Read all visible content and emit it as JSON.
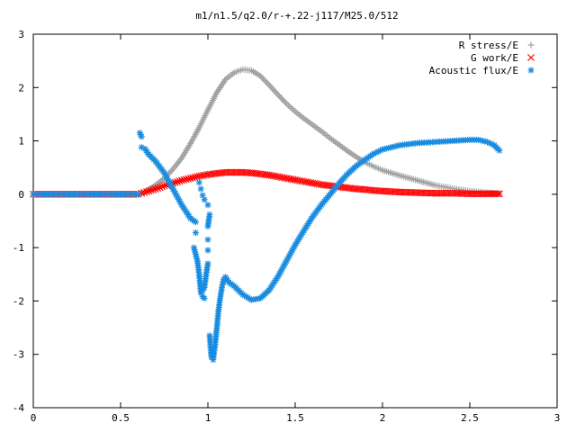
{
  "chart_data": {
    "type": "scatter",
    "title": "m1/n1.5/q2.0/r-+.22-j117/M25.0/512",
    "xlabel": "",
    "ylabel": "",
    "xlim": [
      0,
      3
    ],
    "ylim": [
      -4,
      3
    ],
    "xticks": [
      0,
      0.5,
      1,
      1.5,
      2,
      2.5,
      3
    ],
    "yticks": [
      -4,
      -3,
      -2,
      -1,
      0,
      1,
      2,
      3
    ],
    "xtick_labels": [
      "0",
      "0.5",
      "1",
      "1.5",
      "2",
      "2.5",
      "3"
    ],
    "ytick_labels": [
      "-4",
      "-3",
      "-2",
      "-1",
      "0",
      "1",
      "2",
      "3"
    ],
    "grid": false,
    "legend_position": "top-right",
    "series": [
      {
        "name": "R stress/E",
        "marker": "+",
        "color": "#a0a0a0",
        "points": [
          [
            0.0,
            0
          ],
          [
            0.1,
            0
          ],
          [
            0.2,
            0
          ],
          [
            0.3,
            0
          ],
          [
            0.4,
            0
          ],
          [
            0.5,
            0
          ],
          [
            0.6,
            0
          ],
          [
            0.62,
            0.02
          ],
          [
            0.65,
            0.07
          ],
          [
            0.7,
            0.17
          ],
          [
            0.75,
            0.3
          ],
          [
            0.8,
            0.47
          ],
          [
            0.85,
            0.68
          ],
          [
            0.9,
            0.95
          ],
          [
            0.95,
            1.25
          ],
          [
            1.0,
            1.58
          ],
          [
            1.05,
            1.9
          ],
          [
            1.1,
            2.15
          ],
          [
            1.15,
            2.28
          ],
          [
            1.2,
            2.34
          ],
          [
            1.25,
            2.32
          ],
          [
            1.3,
            2.22
          ],
          [
            1.35,
            2.05
          ],
          [
            1.4,
            1.87
          ],
          [
            1.45,
            1.7
          ],
          [
            1.5,
            1.55
          ],
          [
            1.55,
            1.42
          ],
          [
            1.6,
            1.3
          ],
          [
            1.65,
            1.18
          ],
          [
            1.7,
            1.05
          ],
          [
            1.75,
            0.93
          ],
          [
            1.8,
            0.81
          ],
          [
            1.85,
            0.7
          ],
          [
            1.9,
            0.6
          ],
          [
            1.95,
            0.52
          ],
          [
            2.0,
            0.45
          ],
          [
            2.1,
            0.35
          ],
          [
            2.2,
            0.26
          ],
          [
            2.3,
            0.17
          ],
          [
            2.4,
            0.11
          ],
          [
            2.5,
            0.06
          ],
          [
            2.6,
            0.03
          ],
          [
            2.67,
            0.01
          ]
        ]
      },
      {
        "name": "G work/E",
        "marker": "x",
        "color": "#ff0000",
        "points": [
          [
            0.0,
            0
          ],
          [
            0.1,
            0
          ],
          [
            0.2,
            0
          ],
          [
            0.3,
            0
          ],
          [
            0.4,
            0
          ],
          [
            0.5,
            0
          ],
          [
            0.6,
            0
          ],
          [
            0.62,
            0.02
          ],
          [
            0.65,
            0.05
          ],
          [
            0.7,
            0.1
          ],
          [
            0.75,
            0.16
          ],
          [
            0.8,
            0.21
          ],
          [
            0.85,
            0.26
          ],
          [
            0.9,
            0.3
          ],
          [
            0.95,
            0.34
          ],
          [
            1.0,
            0.37
          ],
          [
            1.05,
            0.39
          ],
          [
            1.1,
            0.41
          ],
          [
            1.15,
            0.41
          ],
          [
            1.2,
            0.41
          ],
          [
            1.25,
            0.4
          ],
          [
            1.3,
            0.38
          ],
          [
            1.35,
            0.36
          ],
          [
            1.4,
            0.33
          ],
          [
            1.45,
            0.3
          ],
          [
            1.5,
            0.27
          ],
          [
            1.55,
            0.24
          ],
          [
            1.6,
            0.21
          ],
          [
            1.65,
            0.18
          ],
          [
            1.7,
            0.16
          ],
          [
            1.75,
            0.14
          ],
          [
            1.8,
            0.12
          ],
          [
            1.85,
            0.1
          ],
          [
            1.9,
            0.09
          ],
          [
            1.95,
            0.07
          ],
          [
            2.0,
            0.06
          ],
          [
            2.1,
            0.04
          ],
          [
            2.2,
            0.03
          ],
          [
            2.3,
            0.02
          ],
          [
            2.4,
            0.02
          ],
          [
            2.5,
            0.01
          ],
          [
            2.6,
            0.01
          ],
          [
            2.67,
            0.01
          ]
        ]
      },
      {
        "name": "Acoustic flux/E",
        "marker": "*",
        "color": "#1a8ce0",
        "points": [
          [
            0.0,
            0
          ],
          [
            0.1,
            0
          ],
          [
            0.2,
            0
          ],
          [
            0.3,
            0
          ],
          [
            0.4,
            0
          ],
          [
            0.5,
            0
          ],
          [
            0.6,
            0
          ],
          [
            0.61,
            1.15
          ],
          [
            0.62,
            1.08
          ],
          [
            0.62,
            0.88
          ],
          [
            0.64,
            0.85
          ],
          [
            0.66,
            0.75
          ],
          [
            0.7,
            0.62
          ],
          [
            0.75,
            0.4
          ],
          [
            0.78,
            0.22
          ],
          [
            0.8,
            0.1
          ],
          [
            0.82,
            -0.02
          ],
          [
            0.85,
            -0.2
          ],
          [
            0.88,
            -0.35
          ],
          [
            0.9,
            -0.45
          ],
          [
            0.93,
            -0.52
          ],
          [
            0.93,
            -0.72
          ],
          [
            0.92,
            -1.0
          ],
          [
            0.94,
            -1.25
          ],
          [
            0.95,
            -1.5
          ],
          [
            0.96,
            -1.85
          ],
          [
            0.98,
            -1.75
          ],
          [
            0.99,
            -1.5
          ],
          [
            1.0,
            -1.3
          ],
          [
            1.0,
            -1.05
          ],
          [
            1.0,
            -0.85
          ],
          [
            1.0,
            -0.6
          ],
          [
            1.01,
            -0.38
          ],
          [
            1.0,
            -0.2
          ],
          [
            0.98,
            -0.1
          ],
          [
            0.97,
            -0.02
          ],
          [
            0.96,
            0.1
          ],
          [
            0.95,
            0.22
          ],
          [
            0.97,
            -1.92
          ],
          [
            0.98,
            -1.95
          ],
          [
            1.01,
            -2.65
          ],
          [
            1.02,
            -3.05
          ],
          [
            1.03,
            -3.1
          ],
          [
            1.04,
            -2.85
          ],
          [
            1.05,
            -2.55
          ],
          [
            1.06,
            -2.2
          ],
          [
            1.07,
            -1.95
          ],
          [
            1.08,
            -1.75
          ],
          [
            1.09,
            -1.6
          ],
          [
            1.1,
            -1.55
          ],
          [
            1.12,
            -1.65
          ],
          [
            1.15,
            -1.72
          ],
          [
            1.2,
            -1.88
          ],
          [
            1.25,
            -1.98
          ],
          [
            1.3,
            -1.95
          ],
          [
            1.35,
            -1.8
          ],
          [
            1.4,
            -1.55
          ],
          [
            1.45,
            -1.25
          ],
          [
            1.5,
            -0.95
          ],
          [
            1.55,
            -0.68
          ],
          [
            1.6,
            -0.42
          ],
          [
            1.65,
            -0.2
          ],
          [
            1.7,
            0.0
          ],
          [
            1.75,
            0.2
          ],
          [
            1.8,
            0.38
          ],
          [
            1.85,
            0.53
          ],
          [
            1.9,
            0.65
          ],
          [
            1.95,
            0.76
          ],
          [
            2.0,
            0.84
          ],
          [
            2.1,
            0.92
          ],
          [
            2.2,
            0.96
          ],
          [
            2.3,
            0.98
          ],
          [
            2.4,
            1.0
          ],
          [
            2.5,
            1.02
          ],
          [
            2.55,
            1.02
          ],
          [
            2.6,
            0.98
          ],
          [
            2.64,
            0.92
          ],
          [
            2.66,
            0.85
          ],
          [
            2.67,
            0.82
          ]
        ]
      }
    ]
  }
}
